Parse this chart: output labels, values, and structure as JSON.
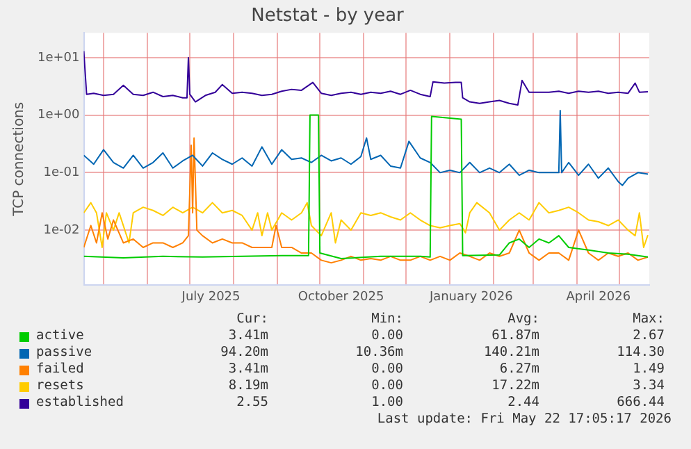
{
  "chart_data": {
    "type": "line",
    "title": "Netstat - by year",
    "ylabel": "TCP connections",
    "log": "y",
    "grid": true,
    "legend": "bottom",
    "marker": "none",
    "line_style": "solid",
    "xlim": [
      "2025-04-17",
      "2026-05-22"
    ],
    "ylim": [
      0.0011,
      27
    ],
    "yticks": [
      {
        "value": 0.01,
        "label": "1e-02"
      },
      {
        "value": 0.1,
        "label": "1e-01"
      },
      {
        "value": 1,
        "label": "1e+00"
      },
      {
        "value": 10,
        "label": "1e+01"
      }
    ],
    "xticks": [
      {
        "value": "2025-05-01",
        "label": null
      },
      {
        "value": "2025-06-01",
        "label": null
      },
      {
        "value": "2025-07-01",
        "label": null
      },
      {
        "value": "2025-07-16",
        "label": "July 2025"
      },
      {
        "value": "2025-08-01",
        "label": null
      },
      {
        "value": "2025-09-01",
        "label": null
      },
      {
        "value": "2025-10-01",
        "label": null
      },
      {
        "value": "2025-10-16",
        "label": "October 2025"
      },
      {
        "value": "2025-11-01",
        "label": null
      },
      {
        "value": "2025-12-01",
        "label": null
      },
      {
        "value": "2026-01-01",
        "label": null
      },
      {
        "value": "2026-01-16",
        "label": "January 2026"
      },
      {
        "value": "2026-02-01",
        "label": null
      },
      {
        "value": "2026-03-01",
        "label": null
      },
      {
        "value": "2026-04-01",
        "label": null
      },
      {
        "value": "2026-04-16",
        "label": "April 2026"
      },
      {
        "value": "2026-05-01",
        "label": null
      }
    ],
    "series": [
      {
        "name": "active",
        "color": "#00cc00",
        "x": [
          "2025-04-17",
          "2025-05-15",
          "2025-06-12",
          "2025-07-10",
          "2025-08-07",
          "2025-09-04",
          "2025-09-23",
          "2025-09-24",
          "2025-09-30",
          "2025-10-01",
          "2025-10-16",
          "2025-11-13",
          "2025-12-11",
          "2025-12-18",
          "2025-12-19",
          "2026-01-09",
          "2026-01-10",
          "2026-02-05",
          "2026-02-12",
          "2026-02-19",
          "2026-02-26",
          "2026-03-05",
          "2026-03-12",
          "2026-03-19",
          "2026-03-26",
          "2026-04-09",
          "2026-04-23",
          "2026-05-07",
          "2026-05-21"
        ],
        "values": [
          0.0035,
          0.0033,
          0.0035,
          0.0034,
          0.0035,
          0.0036,
          0.0036,
          1.0,
          1.0,
          0.004,
          0.0032,
          0.0035,
          0.0035,
          0.0034,
          0.95,
          0.85,
          0.0036,
          0.0037,
          0.006,
          0.007,
          0.005,
          0.007,
          0.006,
          0.008,
          0.005,
          0.0045,
          0.004,
          0.0038,
          0.00341
        ]
      },
      {
        "name": "passive",
        "color": "#0066b3",
        "x": [
          "2025-04-17",
          "2025-04-24",
          "2025-05-01",
          "2025-05-08",
          "2025-05-15",
          "2025-05-22",
          "2025-05-29",
          "2025-06-05",
          "2025-06-12",
          "2025-06-19",
          "2025-06-26",
          "2025-07-03",
          "2025-07-10",
          "2025-07-17",
          "2025-07-24",
          "2025-07-31",
          "2025-08-07",
          "2025-08-14",
          "2025-08-21",
          "2025-08-28",
          "2025-09-04",
          "2025-09-11",
          "2025-09-18",
          "2025-09-25",
          "2025-10-02",
          "2025-10-09",
          "2025-10-16",
          "2025-10-23",
          "2025-10-30",
          "2025-11-03",
          "2025-11-06",
          "2025-11-13",
          "2025-11-20",
          "2025-11-27",
          "2025-12-03",
          "2025-12-11",
          "2025-12-18",
          "2025-12-25",
          "2026-01-01",
          "2026-01-08",
          "2026-01-15",
          "2026-01-22",
          "2026-01-29",
          "2026-02-05",
          "2026-02-12",
          "2026-02-19",
          "2026-02-26",
          "2026-03-05",
          "2026-03-12",
          "2026-03-19",
          "2026-03-20",
          "2026-03-21",
          "2026-03-26",
          "2026-04-02",
          "2026-04-09",
          "2026-04-16",
          "2026-04-23",
          "2026-04-30",
          "2026-05-03",
          "2026-05-07",
          "2026-05-14",
          "2026-05-21"
        ],
        "values": [
          0.2,
          0.14,
          0.25,
          0.15,
          0.12,
          0.2,
          0.12,
          0.15,
          0.22,
          0.12,
          0.16,
          0.2,
          0.13,
          0.22,
          0.17,
          0.14,
          0.18,
          0.13,
          0.28,
          0.14,
          0.25,
          0.17,
          0.18,
          0.15,
          0.2,
          0.16,
          0.18,
          0.14,
          0.19,
          0.4,
          0.17,
          0.2,
          0.13,
          0.12,
          0.35,
          0.18,
          0.15,
          0.1,
          0.11,
          0.1,
          0.15,
          0.1,
          0.12,
          0.1,
          0.14,
          0.09,
          0.11,
          0.1,
          0.1,
          0.1,
          1.2,
          0.1,
          0.15,
          0.09,
          0.14,
          0.08,
          0.12,
          0.07,
          0.06,
          0.08,
          0.1,
          0.094
        ]
      },
      {
        "name": "failed",
        "color": "#ff8000",
        "x": [
          "2025-04-17",
          "2025-04-22",
          "2025-04-26",
          "2025-04-30",
          "2025-05-04",
          "2025-05-08",
          "2025-05-15",
          "2025-05-22",
          "2025-05-29",
          "2025-06-05",
          "2025-06-12",
          "2025-06-19",
          "2025-06-26",
          "2025-06-30",
          "2025-07-02",
          "2025-07-03",
          "2025-07-04",
          "2025-07-06",
          "2025-07-10",
          "2025-07-17",
          "2025-07-24",
          "2025-07-31",
          "2025-08-07",
          "2025-08-14",
          "2025-08-21",
          "2025-08-28",
          "2025-08-31",
          "2025-09-04",
          "2025-09-11",
          "2025-09-18",
          "2025-09-25",
          "2025-10-02",
          "2025-10-09",
          "2025-10-16",
          "2025-10-23",
          "2025-10-30",
          "2025-11-06",
          "2025-11-13",
          "2025-11-20",
          "2025-11-27",
          "2025-12-04",
          "2025-12-11",
          "2025-12-18",
          "2025-12-25",
          "2026-01-01",
          "2026-01-08",
          "2026-01-15",
          "2026-01-22",
          "2026-01-29",
          "2026-02-05",
          "2026-02-12",
          "2026-02-19",
          "2026-02-26",
          "2026-03-05",
          "2026-03-12",
          "2026-03-19",
          "2026-03-26",
          "2026-04-02",
          "2026-04-09",
          "2026-04-16",
          "2026-04-23",
          "2026-04-30",
          "2026-05-07",
          "2026-05-14",
          "2026-05-21"
        ],
        "values": [
          0.005,
          0.012,
          0.006,
          0.02,
          0.007,
          0.015,
          0.006,
          0.007,
          0.005,
          0.006,
          0.006,
          0.005,
          0.006,
          0.008,
          0.3,
          0.02,
          0.4,
          0.01,
          0.008,
          0.006,
          0.007,
          0.006,
          0.006,
          0.005,
          0.005,
          0.005,
          0.012,
          0.005,
          0.005,
          0.004,
          0.004,
          0.003,
          0.0027,
          0.003,
          0.0035,
          0.003,
          0.0032,
          0.003,
          0.0035,
          0.003,
          0.003,
          0.0035,
          0.003,
          0.0035,
          0.003,
          0.004,
          0.0035,
          0.003,
          0.004,
          0.0035,
          0.004,
          0.01,
          0.004,
          0.003,
          0.004,
          0.004,
          0.003,
          0.01,
          0.004,
          0.003,
          0.004,
          0.0035,
          0.004,
          0.003,
          0.00341
        ]
      },
      {
        "name": "resets",
        "color": "#ffcc00",
        "x": [
          "2025-04-17",
          "2025-04-22",
          "2025-04-26",
          "2025-04-30",
          "2025-05-03",
          "2025-05-08",
          "2025-05-12",
          "2025-05-19",
          "2025-05-22",
          "2025-05-29",
          "2025-06-05",
          "2025-06-12",
          "2025-06-19",
          "2025-06-26",
          "2025-07-03",
          "2025-07-10",
          "2025-07-17",
          "2025-07-24",
          "2025-07-31",
          "2025-08-07",
          "2025-08-14",
          "2025-08-18",
          "2025-08-21",
          "2025-08-25",
          "2025-08-28",
          "2025-09-04",
          "2025-09-11",
          "2025-09-18",
          "2025-09-22",
          "2025-09-25",
          "2025-10-02",
          "2025-10-09",
          "2025-10-12",
          "2025-10-16",
          "2025-10-23",
          "2025-10-30",
          "2025-11-06",
          "2025-11-13",
          "2025-11-20",
          "2025-11-27",
          "2025-12-04",
          "2025-12-11",
          "2025-12-18",
          "2025-12-25",
          "2026-01-01",
          "2026-01-08",
          "2026-01-12",
          "2026-01-15",
          "2026-01-20",
          "2026-01-29",
          "2026-02-05",
          "2026-02-12",
          "2026-02-19",
          "2026-02-26",
          "2026-03-05",
          "2026-03-12",
          "2026-03-19",
          "2026-03-26",
          "2026-04-02",
          "2026-04-09",
          "2026-04-16",
          "2026-04-23",
          "2026-04-30",
          "2026-05-07",
          "2026-05-12",
          "2026-05-15",
          "2026-05-18",
          "2026-05-21"
        ],
        "values": [
          0.02,
          0.03,
          0.02,
          0.005,
          0.02,
          0.01,
          0.02,
          0.006,
          0.02,
          0.025,
          0.022,
          0.018,
          0.025,
          0.02,
          0.025,
          0.02,
          0.03,
          0.02,
          0.022,
          0.018,
          0.01,
          0.02,
          0.008,
          0.02,
          0.01,
          0.02,
          0.015,
          0.02,
          0.03,
          0.012,
          0.008,
          0.02,
          0.006,
          0.015,
          0.01,
          0.02,
          0.018,
          0.02,
          0.017,
          0.015,
          0.02,
          0.015,
          0.012,
          0.011,
          0.012,
          0.013,
          0.009,
          0.02,
          0.03,
          0.02,
          0.01,
          0.015,
          0.02,
          0.015,
          0.03,
          0.02,
          0.022,
          0.025,
          0.02,
          0.015,
          0.014,
          0.012,
          0.015,
          0.01,
          0.008,
          0.02,
          0.005,
          0.00819
        ]
      },
      {
        "name": "established",
        "color": "#330099",
        "x": [
          "2025-04-17",
          "2025-04-19",
          "2025-04-24",
          "2025-05-01",
          "2025-05-08",
          "2025-05-15",
          "2025-05-22",
          "2025-05-29",
          "2025-06-05",
          "2025-06-12",
          "2025-06-19",
          "2025-06-26",
          "2025-06-29",
          "2025-06-30",
          "2025-07-01",
          "2025-07-05",
          "2025-07-12",
          "2025-07-19",
          "2025-07-24",
          "2025-07-31",
          "2025-08-07",
          "2025-08-14",
          "2025-08-21",
          "2025-08-28",
          "2025-09-04",
          "2025-09-11",
          "2025-09-18",
          "2025-09-26",
          "2025-10-02",
          "2025-10-09",
          "2025-10-16",
          "2025-10-23",
          "2025-10-30",
          "2025-11-06",
          "2025-11-13",
          "2025-11-20",
          "2025-11-27",
          "2025-12-04",
          "2025-12-11",
          "2025-12-18",
          "2025-12-20",
          "2025-12-28",
          "2026-01-05",
          "2026-01-09",
          "2026-01-10",
          "2026-01-15",
          "2026-01-22",
          "2026-01-29",
          "2026-02-05",
          "2026-02-12",
          "2026-02-18",
          "2026-02-21",
          "2026-02-26",
          "2026-03-05",
          "2026-03-12",
          "2026-03-19",
          "2026-03-26",
          "2026-04-02",
          "2026-04-09",
          "2026-04-16",
          "2026-04-23",
          "2026-04-30",
          "2026-05-07",
          "2026-05-12",
          "2026-05-15",
          "2026-05-21"
        ],
        "values": [
          13,
          2.3,
          2.4,
          2.2,
          2.3,
          3.3,
          2.3,
          2.2,
          2.5,
          2.1,
          2.2,
          2.0,
          2.0,
          10,
          2.3,
          1.7,
          2.2,
          2.5,
          3.4,
          2.4,
          2.5,
          2.4,
          2.2,
          2.3,
          2.6,
          2.8,
          2.7,
          3.7,
          2.4,
          2.2,
          2.4,
          2.5,
          2.3,
          2.5,
          2.4,
          2.6,
          2.3,
          2.7,
          2.3,
          2.1,
          3.8,
          3.6,
          3.7,
          3.7,
          2.0,
          1.7,
          1.6,
          1.7,
          1.8,
          1.6,
          1.5,
          4.0,
          2.5,
          2.5,
          2.5,
          2.6,
          2.4,
          2.6,
          2.5,
          2.6,
          2.4,
          2.5,
          2.4,
          3.6,
          2.5,
          2.55
        ]
      }
    ],
    "annotations": [
      "Cur:",
      "Min:",
      "Avg:",
      "Max:",
      "3.41m",
      "0.00",
      "61.87m",
      "2.67",
      "94.20m",
      "10.36m",
      "140.21m",
      "114.30",
      "3.41m",
      "0.00",
      "6.27m",
      "1.49",
      "8.19m",
      "0.00",
      "17.22m",
      "3.34",
      "2.55",
      "1.00",
      "2.44",
      "666.44",
      "Last update: Fri May 22 17:05:17 2026"
    ]
  }
}
